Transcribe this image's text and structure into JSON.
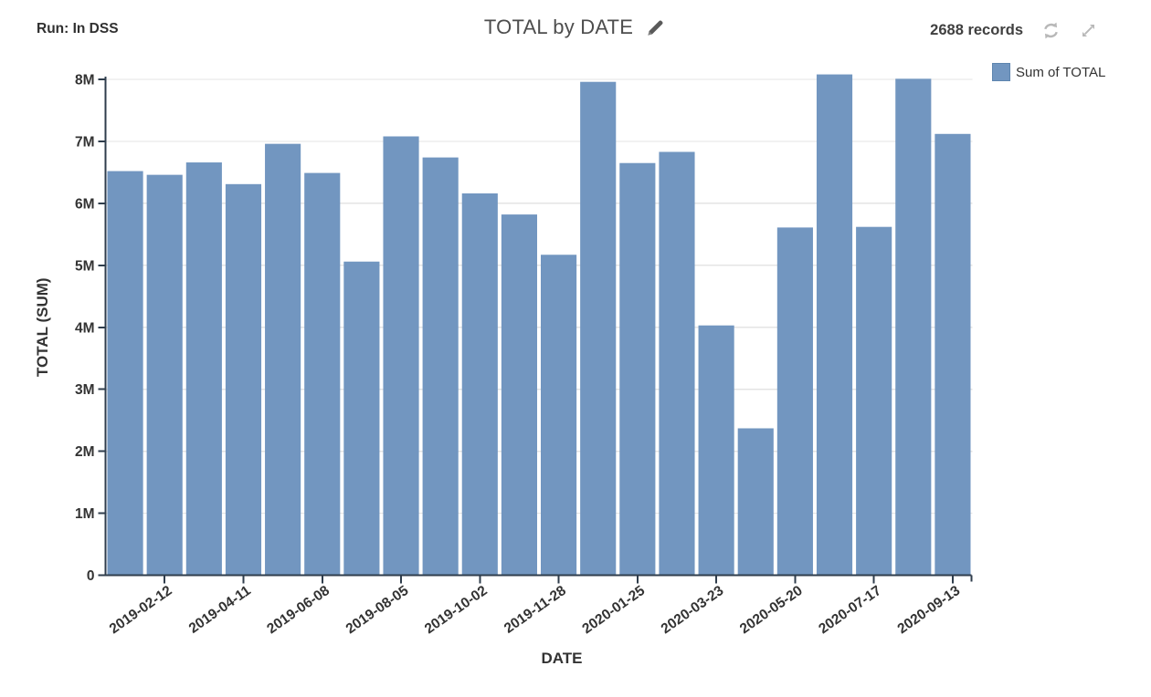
{
  "header": {
    "run_label": "Run: In DSS",
    "title": "TOTAL by DATE",
    "records": "2688 records"
  },
  "legend": {
    "label": "Sum of TOTAL"
  },
  "icons": {
    "edit": "pencil-icon",
    "refresh": "refresh-icon",
    "expand": "expand-icon"
  },
  "colors": {
    "bar": "#7296c0",
    "bar_border": "#5e85af",
    "axis": "#2f3d4c",
    "grid": "#e4e4e4",
    "tick_text": "#333333",
    "title_text": "#4d4d4d",
    "icon_gray": "#b8b8b8",
    "pencil": "#5a5a5a"
  },
  "chart_data": {
    "type": "bar",
    "title": "TOTAL by DATE",
    "xlabel": "DATE",
    "ylabel": "TOTAL (SUM)",
    "series_name": "Sum of TOTAL",
    "ylim": [
      0,
      8000000
    ],
    "grid": true,
    "legend_position": "top-right",
    "y_tick_labels": [
      "0",
      "1M",
      "2M",
      "3M",
      "4M",
      "5M",
      "6M",
      "7M",
      "8M"
    ],
    "x_tick_labels": [
      "2019-02-12",
      "2019-04-11",
      "2019-06-08",
      "2019-08-05",
      "2019-10-02",
      "2019-11-28",
      "2020-01-25",
      "2020-03-23",
      "2020-05-20",
      "2020-07-17",
      "2020-09-13"
    ],
    "x_tick_every": 2,
    "values": [
      6520000,
      6460000,
      6660000,
      6310000,
      6960000,
      6490000,
      5060000,
      7080000,
      6740000,
      6160000,
      5820000,
      5170000,
      7960000,
      6650000,
      6830000,
      4030000,
      2370000,
      5610000,
      8080000,
      5620000,
      8010000,
      7120000
    ]
  }
}
